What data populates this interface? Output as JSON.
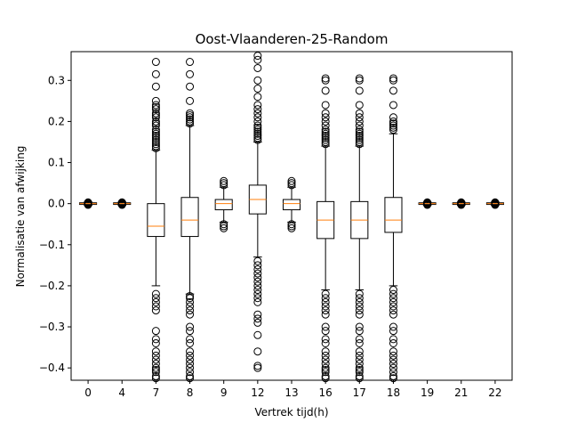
{
  "chart_data": {
    "type": "box",
    "title": "Oost-Vlaanderen-25-Random",
    "xlabel": "Vertrek tijd(h)",
    "ylabel": "Normalisatie van afwijking",
    "ylim": [
      -0.43,
      0.37
    ],
    "yticks": [
      0.3,
      0.2,
      0.1,
      0.0,
      -0.1,
      -0.2,
      -0.3,
      -0.4
    ],
    "ytick_labels": [
      "0.3",
      "0.2",
      "0.1",
      "0.0",
      "−0.1",
      "−0.2",
      "−0.3",
      "−0.4"
    ],
    "categories": [
      "0",
      "4",
      "7",
      "8",
      "9",
      "12",
      "13",
      "16",
      "17",
      "18",
      "19",
      "21",
      "22"
    ],
    "grid": false,
    "colors": {
      "box": "#000000",
      "median": "#ff7f0e",
      "flier": "#000000"
    },
    "boxes": [
      {
        "label": "0",
        "whislo": -0.004,
        "q1": -0.002,
        "med": 0.0,
        "q3": 0.002,
        "whishi": 0.004,
        "fliers": [
          0.003,
          0.002,
          0.001,
          -0.001,
          -0.002,
          -0.003
        ]
      },
      {
        "label": "4",
        "whislo": -0.004,
        "q1": -0.002,
        "med": 0.0,
        "q3": 0.002,
        "whishi": 0.004,
        "fliers": [
          0.003,
          0.002,
          0.001,
          -0.001,
          -0.002,
          -0.003
        ]
      },
      {
        "label": "7",
        "whislo": -0.2,
        "q1": -0.08,
        "med": -0.055,
        "q3": 0.0,
        "whishi": 0.13,
        "fliers": [
          0.345,
          0.315,
          0.285,
          0.25,
          0.24,
          0.235,
          0.23,
          0.22,
          0.215,
          0.21,
          0.2,
          0.195,
          0.19,
          0.18,
          0.175,
          0.17,
          0.165,
          0.16,
          0.155,
          0.15,
          0.145,
          0.14,
          0.135,
          -0.22,
          -0.23,
          -0.24,
          -0.25,
          -0.26,
          -0.31,
          -0.33,
          -0.34,
          -0.36,
          -0.37,
          -0.38,
          -0.39,
          -0.4,
          -0.405,
          -0.41,
          -0.42,
          -0.425
        ]
      },
      {
        "label": "8",
        "whislo": -0.22,
        "q1": -0.08,
        "med": -0.04,
        "q3": 0.015,
        "whishi": 0.19,
        "fliers": [
          0.345,
          0.315,
          0.285,
          0.25,
          0.22,
          0.215,
          0.21,
          0.205,
          0.2,
          0.195,
          -0.225,
          -0.23,
          -0.24,
          -0.25,
          -0.26,
          -0.27,
          -0.3,
          -0.31,
          -0.33,
          -0.34,
          -0.36,
          -0.37,
          -0.38,
          -0.39,
          -0.4,
          -0.41,
          -0.42,
          -0.425
        ]
      },
      {
        "label": "9",
        "whislo": -0.045,
        "q1": -0.015,
        "med": 0.0,
        "q3": 0.01,
        "whishi": 0.04,
        "fliers": [
          0.055,
          0.05,
          0.045,
          -0.05,
          -0.055,
          -0.06
        ]
      },
      {
        "label": "12",
        "whislo": -0.13,
        "q1": -0.025,
        "med": 0.01,
        "q3": 0.045,
        "whishi": 0.15,
        "fliers": [
          0.36,
          0.35,
          0.33,
          0.3,
          0.28,
          0.26,
          0.24,
          0.23,
          0.22,
          0.21,
          0.2,
          0.19,
          0.185,
          0.18,
          0.175,
          0.17,
          0.165,
          0.16,
          0.155,
          -0.14,
          -0.15,
          -0.16,
          -0.17,
          -0.18,
          -0.19,
          -0.2,
          -0.21,
          -0.22,
          -0.23,
          -0.24,
          -0.27,
          -0.28,
          -0.29,
          -0.32,
          -0.36,
          -0.395,
          -0.4
        ]
      },
      {
        "label": "13",
        "whislo": -0.045,
        "q1": -0.015,
        "med": 0.0,
        "q3": 0.01,
        "whishi": 0.04,
        "fliers": [
          0.055,
          0.05,
          0.045,
          -0.05,
          -0.055,
          -0.06
        ]
      },
      {
        "label": "16",
        "whislo": -0.21,
        "q1": -0.085,
        "med": -0.04,
        "q3": 0.005,
        "whishi": 0.14,
        "fliers": [
          0.305,
          0.3,
          0.275,
          0.24,
          0.22,
          0.21,
          0.2,
          0.19,
          0.18,
          0.175,
          0.17,
          0.165,
          0.16,
          0.155,
          0.15,
          0.145,
          -0.22,
          -0.23,
          -0.24,
          -0.25,
          -0.26,
          -0.27,
          -0.3,
          -0.31,
          -0.33,
          -0.34,
          -0.36,
          -0.37,
          -0.38,
          -0.39,
          -0.4,
          -0.405,
          -0.41,
          -0.42,
          -0.425
        ]
      },
      {
        "label": "17",
        "whislo": -0.21,
        "q1": -0.085,
        "med": -0.04,
        "q3": 0.005,
        "whishi": 0.14,
        "fliers": [
          0.305,
          0.3,
          0.275,
          0.24,
          0.22,
          0.21,
          0.2,
          0.19,
          0.18,
          0.175,
          0.17,
          0.165,
          0.16,
          0.155,
          0.15,
          0.145,
          -0.22,
          -0.23,
          -0.24,
          -0.25,
          -0.26,
          -0.27,
          -0.3,
          -0.31,
          -0.33,
          -0.34,
          -0.36,
          -0.37,
          -0.38,
          -0.39,
          -0.4,
          -0.405,
          -0.41,
          -0.42,
          -0.425
        ]
      },
      {
        "label": "18",
        "whislo": -0.2,
        "q1": -0.07,
        "med": -0.04,
        "q3": 0.015,
        "whishi": 0.17,
        "fliers": [
          0.305,
          0.3,
          0.275,
          0.24,
          0.21,
          0.2,
          0.195,
          0.19,
          0.185,
          0.18,
          -0.21,
          -0.22,
          -0.23,
          -0.24,
          -0.25,
          -0.26,
          -0.27,
          -0.3,
          -0.31,
          -0.33,
          -0.34,
          -0.36,
          -0.37,
          -0.38,
          -0.39,
          -0.4,
          -0.41,
          -0.42,
          -0.425
        ]
      },
      {
        "label": "19",
        "whislo": -0.004,
        "q1": -0.002,
        "med": 0.0,
        "q3": 0.002,
        "whishi": 0.004,
        "fliers": [
          0.003,
          0.002,
          0.001,
          -0.001,
          -0.002,
          -0.003
        ]
      },
      {
        "label": "21",
        "whislo": -0.004,
        "q1": -0.002,
        "med": 0.0,
        "q3": 0.002,
        "whishi": 0.004,
        "fliers": [
          0.003,
          0.002,
          0.001,
          -0.001,
          -0.002,
          -0.003
        ]
      },
      {
        "label": "22",
        "whislo": -0.004,
        "q1": -0.002,
        "med": 0.0,
        "q3": 0.002,
        "whishi": 0.004,
        "fliers": [
          0.003,
          0.002,
          0.001,
          -0.001,
          -0.002,
          -0.003
        ]
      }
    ]
  }
}
